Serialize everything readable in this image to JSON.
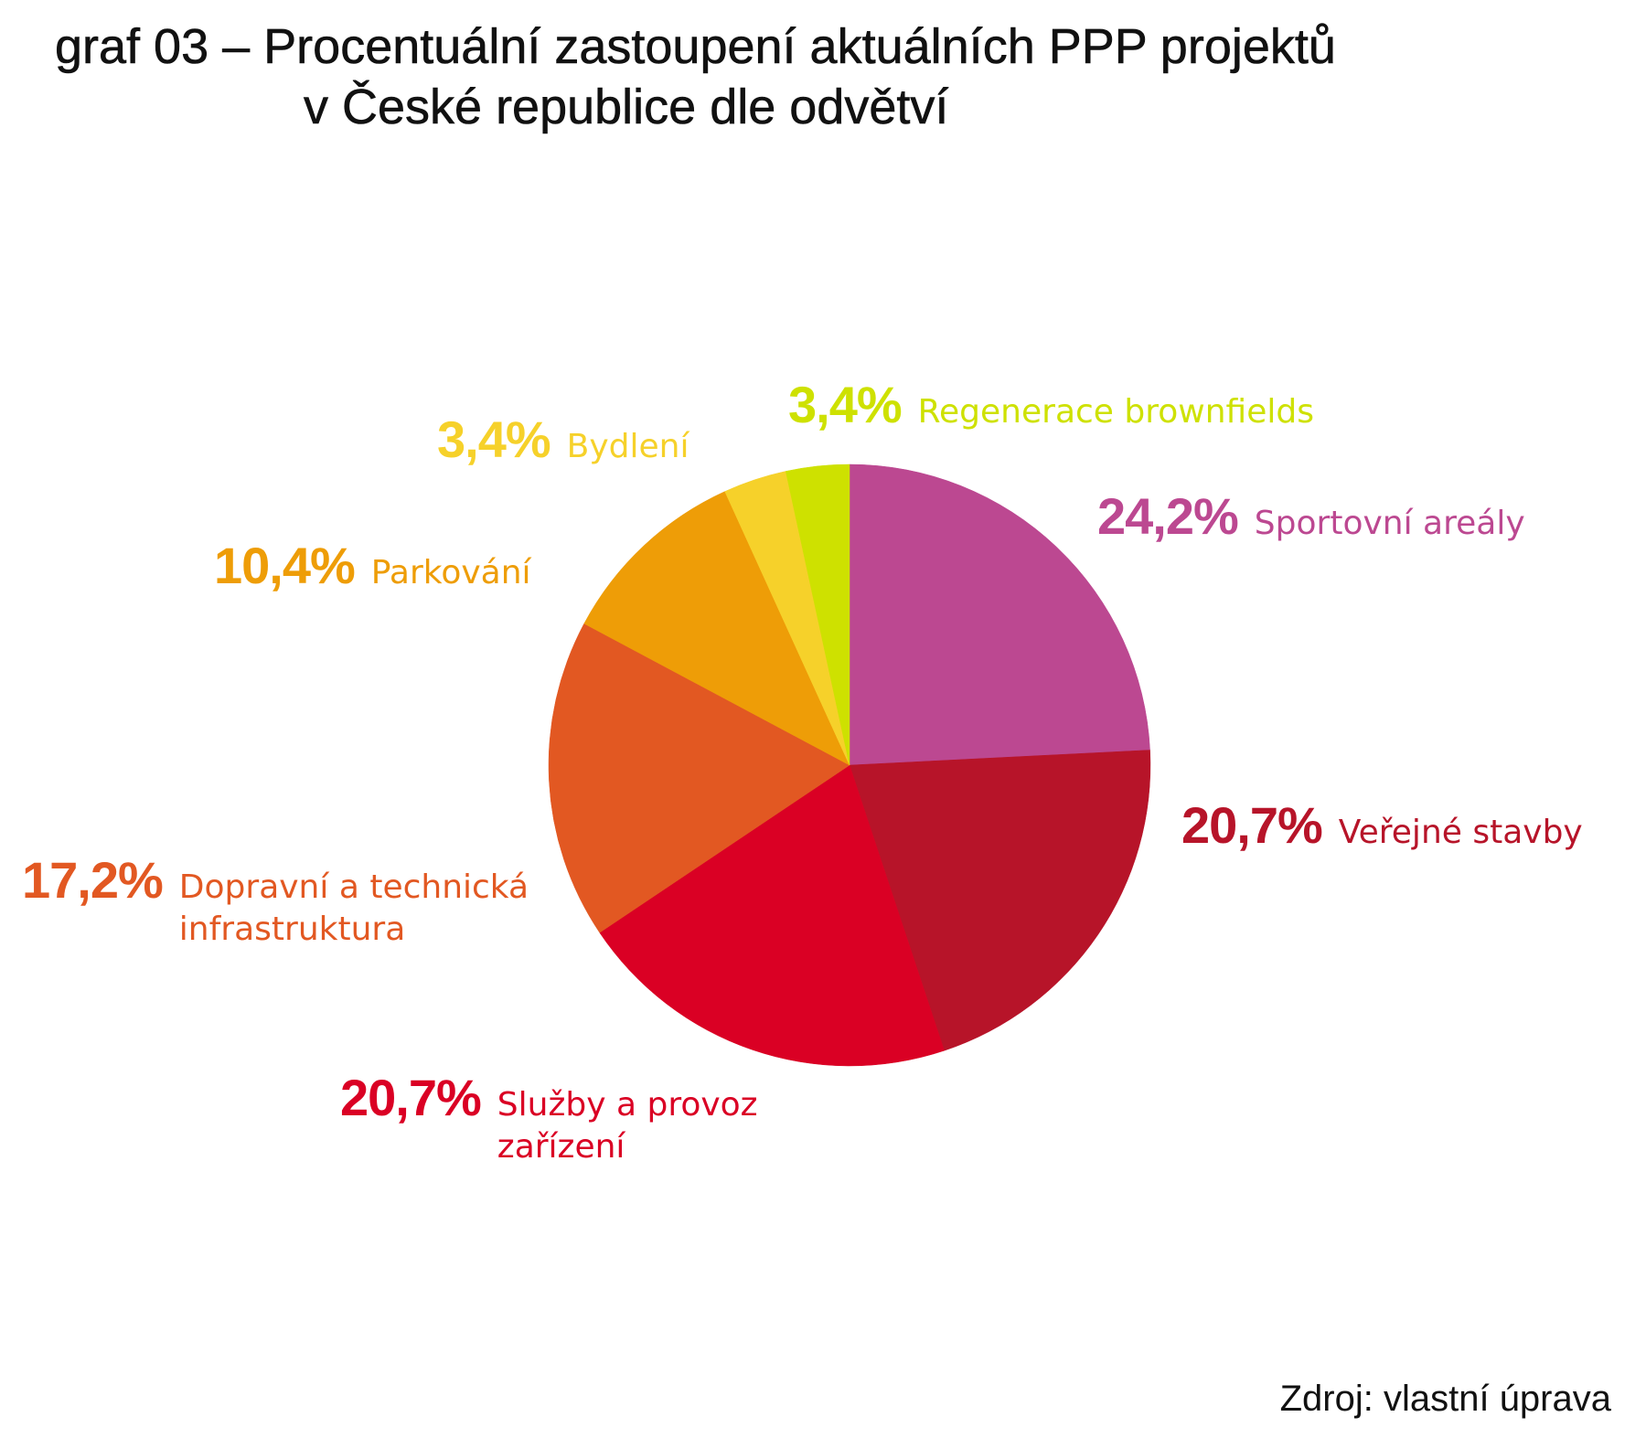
{
  "title": {
    "line1": "graf 03 – Procentuální zastoupení aktuálních PPP projektů",
    "line2": "v České republice dle odvětví"
  },
  "source": "Zdroj: vlastní úprava",
  "chart_data": {
    "type": "pie",
    "title": "graf 03 – Procentuální zastoupení aktuálních PPP projektů v České republice dle odvětví",
    "slices": [
      {
        "name": "Sportovní areály",
        "value": 24.2,
        "label": "24,2%",
        "color": "#BC4891"
      },
      {
        "name": "Veřejné stavby",
        "value": 20.7,
        "label": "20,7%",
        "color": "#B71429"
      },
      {
        "name": "Služby a provoz zařízení",
        "value": 20.7,
        "label": "20,7%",
        "color": "#DA0024"
      },
      {
        "name": "Dopravní a technická infrastruktura",
        "value": 17.2,
        "label": "17,2%",
        "color": "#E25822"
      },
      {
        "name": "Parkování",
        "value": 10.4,
        "label": "10,4%",
        "color": "#EE9D07"
      },
      {
        "name": "Bydlení",
        "value": 3.4,
        "label": "3,4%",
        "color": "#F6D12A"
      },
      {
        "name": "Regenerace brownfields",
        "value": 3.4,
        "label": "3,4%",
        "color": "#CEE100"
      }
    ],
    "start_angle": "12 o'clock",
    "direction": "clockwise",
    "legend": "none (direct labels)"
  },
  "labels": [
    {
      "pct": "24,2%",
      "name": "Sportovní areály",
      "color": "#BC4891"
    },
    {
      "pct": "20,7%",
      "name": "Veřejné stavby",
      "color": "#B71429"
    },
    {
      "pct": "20,7%",
      "name": "Služby a provoz\nzařízení",
      "color": "#DA0024"
    },
    {
      "pct": "17,2%",
      "name": "Dopravní a technická\ninfrastruktura",
      "color": "#E25822"
    },
    {
      "pct": "10,4%",
      "name": "Parkování",
      "color": "#EE9D07"
    },
    {
      "pct": "3,4%",
      "name": "Bydlení",
      "color": "#F6D12A"
    },
    {
      "pct": "3,4%",
      "name": "Regenerace brownfields",
      "color": "#CEE100"
    }
  ]
}
